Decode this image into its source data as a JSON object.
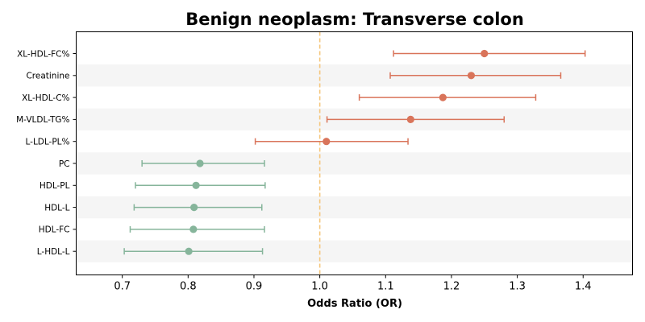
{
  "chart_data": {
    "type": "scatter",
    "title": "Benign neoplasm: Transverse colon",
    "xlabel": "Odds Ratio (OR)",
    "ylabel": "",
    "xlim": [
      0.63,
      1.475
    ],
    "x_ticks": [
      0.7,
      0.8,
      0.9,
      1.0,
      1.1,
      1.2,
      1.3,
      1.4
    ],
    "x_tick_labels": [
      "0.7",
      "0.8",
      "0.9",
      "1.0",
      "1.1",
      "1.2",
      "1.3",
      "1.4"
    ],
    "reference_line": {
      "x": 1.0,
      "color": "#f5c77e",
      "style": "dashed"
    },
    "alternating_row_shading": true,
    "grid": false,
    "colors": {
      "risk": "#d9745a",
      "protective": "#86b59b"
    },
    "categories": [
      "XL-HDL-FC%",
      "Creatinine",
      "XL-HDL-C%",
      "M-VLDL-TG%",
      "L-LDL-PL%",
      "PC",
      "HDL-PL",
      "HDL-L",
      "HDL-FC",
      "L-HDL-L"
    ],
    "or": [
      1.25,
      1.23,
      1.187,
      1.138,
      1.01,
      0.818,
      0.812,
      0.809,
      0.808,
      0.801
    ],
    "ci_low": [
      1.112,
      1.107,
      1.06,
      1.011,
      0.902,
      0.73,
      0.72,
      0.718,
      0.712,
      0.703
    ],
    "ci_high": [
      1.403,
      1.366,
      1.328,
      1.28,
      1.134,
      0.916,
      0.917,
      0.912,
      0.916,
      0.913
    ]
  }
}
